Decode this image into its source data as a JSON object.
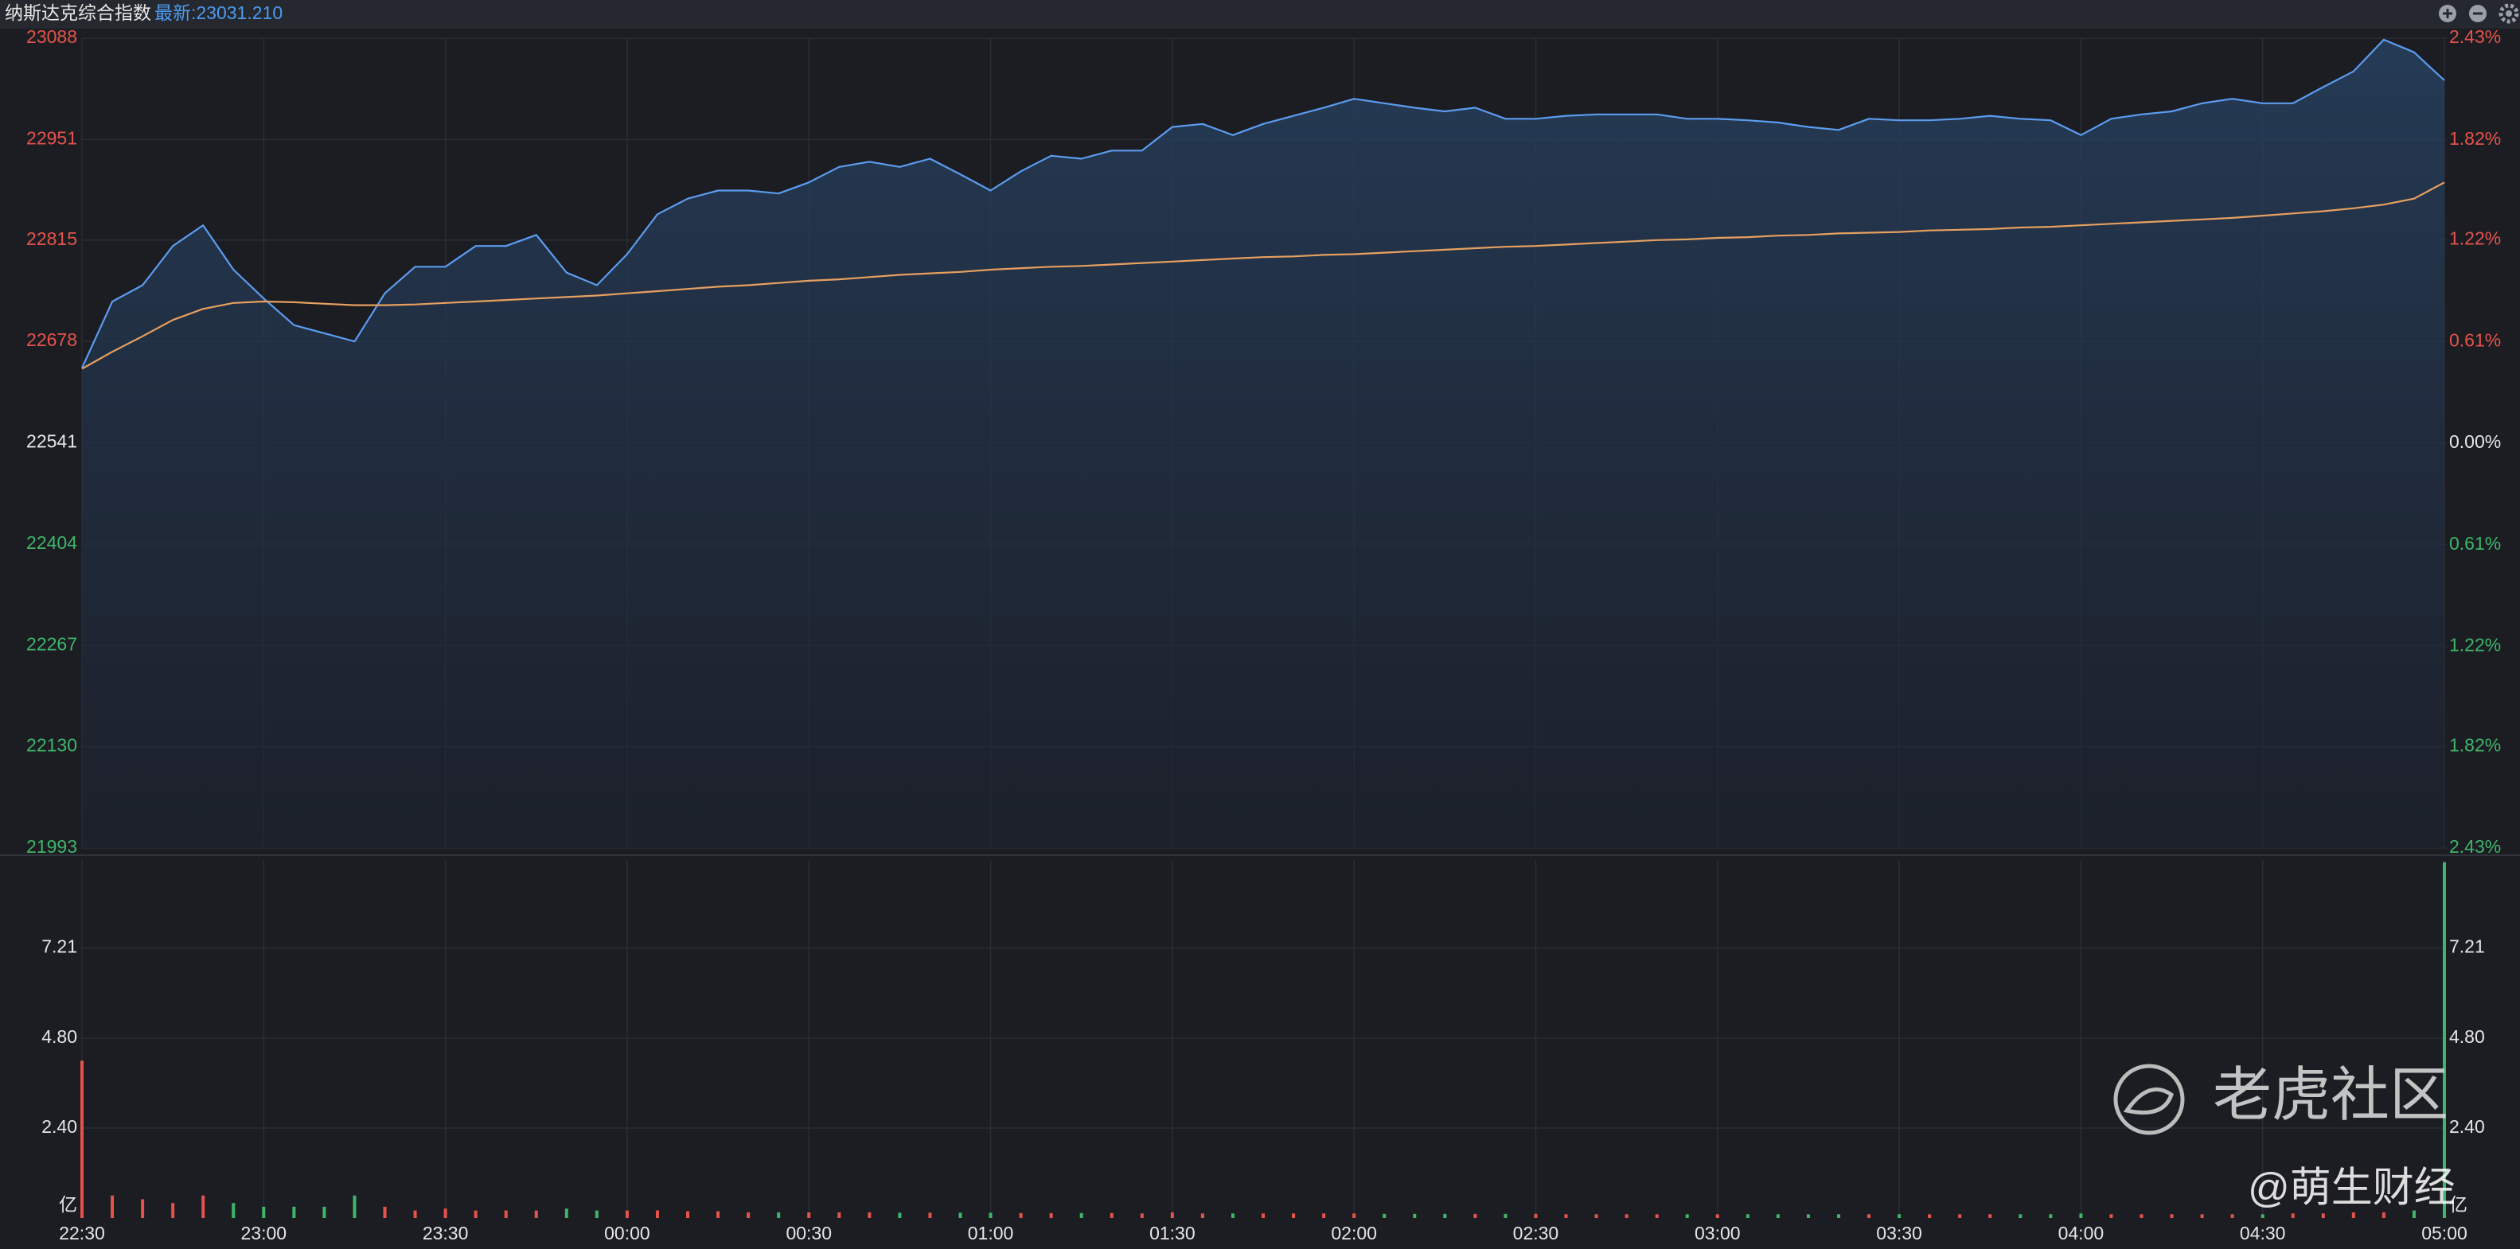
{
  "header": {
    "title": "纳斯达克综合指数",
    "latest": "最新:23031.210"
  },
  "chart_data": [
    {
      "type": "line",
      "categories": [
        "22:30",
        null,
        null,
        null,
        null,
        null,
        "23:00",
        null,
        null,
        null,
        null,
        null,
        "23:30",
        null,
        null,
        null,
        null,
        null,
        "00:00",
        null,
        null,
        null,
        null,
        null,
        "00:30",
        null,
        null,
        null,
        null,
        null,
        "01:00",
        null,
        null,
        null,
        null,
        null,
        "01:30",
        null,
        null,
        null,
        null,
        null,
        "02:00",
        null,
        null,
        null,
        null,
        null,
        "02:30",
        null,
        null,
        null,
        null,
        null,
        "03:00",
        null,
        null,
        null,
        null,
        null,
        "03:30",
        null,
        null,
        null,
        null,
        null,
        "04:00",
        null,
        null,
        null,
        null,
        null,
        "04:30",
        null,
        null,
        null,
        null,
        null,
        "05:00"
      ],
      "series": [
        {
          "color": "#5b9cf0",
          "values": [
            22642,
            22732,
            22754,
            22807,
            22835,
            22775,
            22736,
            22700,
            22689,
            22678,
            22743,
            22779,
            22779,
            22807,
            22807,
            22822,
            22771,
            22754,
            22796,
            22850,
            22871,
            22882,
            22882,
            22878,
            22893,
            22914,
            22921,
            22914,
            22925,
            22904,
            22882,
            22908,
            22929,
            22925,
            22936,
            22936,
            22968,
            22972,
            22957,
            22972,
            22983,
            22994,
            23006,
            23000,
            22994,
            22989,
            22994,
            22979,
            22979,
            22983,
            22985,
            22985,
            22985,
            22979,
            22979,
            22977,
            22974,
            22968,
            22964,
            22979,
            22977,
            22977,
            22979,
            22983,
            22979,
            22977,
            22957,
            22979,
            22985,
            22989,
            23000,
            23006,
            23000,
            23000,
            23022,
            23043,
            23086,
            23069,
            23031
          ]
        },
        {
          "color": "#e8a060",
          "values": [
            22641,
            22664,
            22685,
            22707,
            22722,
            22730,
            22732,
            22731,
            22729,
            22727,
            22727,
            22728,
            22730,
            22732,
            22734,
            22736,
            22738,
            22740,
            22743,
            22746,
            22749,
            22752,
            22754,
            22757,
            22760,
            22762,
            22765,
            22768,
            22770,
            22772,
            22775,
            22777,
            22779,
            22780,
            22782,
            22784,
            22786,
            22788,
            22790,
            22792,
            22793,
            22795,
            22796,
            22798,
            22800,
            22802,
            22804,
            22806,
            22807,
            22809,
            22811,
            22813,
            22815,
            22816,
            22818,
            22819,
            22821,
            22822,
            22824,
            22825,
            22826,
            22828,
            22829,
            22830,
            22832,
            22833,
            22835,
            22837,
            22839,
            22841,
            22843,
            22845,
            22848,
            22851,
            22854,
            22858,
            22863,
            22871,
            22893
          ]
        }
      ],
      "ylim": [
        21993,
        23088
      ],
      "yticks": [
        21993,
        22130,
        22267,
        22404,
        22541,
        22678,
        22815,
        22951,
        23088
      ],
      "y2lim": [
        -2.43,
        2.43
      ],
      "y2ticks": [
        {
          "value": -2.43,
          "label": "2.43%"
        },
        {
          "value": -1.82,
          "label": "1.82%"
        },
        {
          "value": -1.22,
          "label": "1.22%"
        },
        {
          "value": -0.61,
          "label": "0.61%"
        },
        {
          "value": 0,
          "label": "0.00%"
        },
        {
          "value": 0.61,
          "label": "0.61%"
        },
        {
          "value": 1.22,
          "label": "1.22%"
        },
        {
          "value": 1.82,
          "label": "1.82%"
        },
        {
          "value": 2.43,
          "label": "2.43%"
        }
      ],
      "up_color": "#e5534b",
      "down_color": "#3fb56a",
      "flat_color": "#e6e6e6",
      "grid": true
    },
    {
      "type": "bar",
      "unit": "亿",
      "values": [
        4.2,
        0.6,
        0.5,
        0.4,
        0.6,
        0.4,
        0.3,
        0.3,
        0.3,
        0.6,
        0.3,
        0.2,
        0.25,
        0.2,
        0.2,
        0.2,
        0.25,
        0.2,
        0.2,
        0.2,
        0.18,
        0.18,
        0.15,
        0.15,
        0.15,
        0.15,
        0.15,
        0.14,
        0.14,
        0.14,
        0.14,
        0.13,
        0.13,
        0.13,
        0.13,
        0.12,
        0.15,
        0.12,
        0.12,
        0.12,
        0.12,
        0.12,
        0.12,
        0.11,
        0.11,
        0.11,
        0.11,
        0.11,
        0.11,
        0.1,
        0.1,
        0.1,
        0.1,
        0.1,
        0.1,
        0.1,
        0.1,
        0.1,
        0.1,
        0.1,
        0.1,
        0.1,
        0.1,
        0.1,
        0.1,
        0.1,
        0.12,
        0.1,
        0.1,
        0.1,
        0.1,
        0.1,
        0.1,
        0.12,
        0.12,
        0.15,
        0.15,
        0.2,
        9.5
      ],
      "ylim": [
        0,
        9.56
      ],
      "yticks": [
        {
          "value": 2.4,
          "label": "2.40"
        },
        {
          "value": 4.8,
          "label": "4.80"
        },
        7.21
      ]
    }
  ],
  "watermark": {
    "brand": "老虎社区",
    "author": "@萌生财经"
  }
}
